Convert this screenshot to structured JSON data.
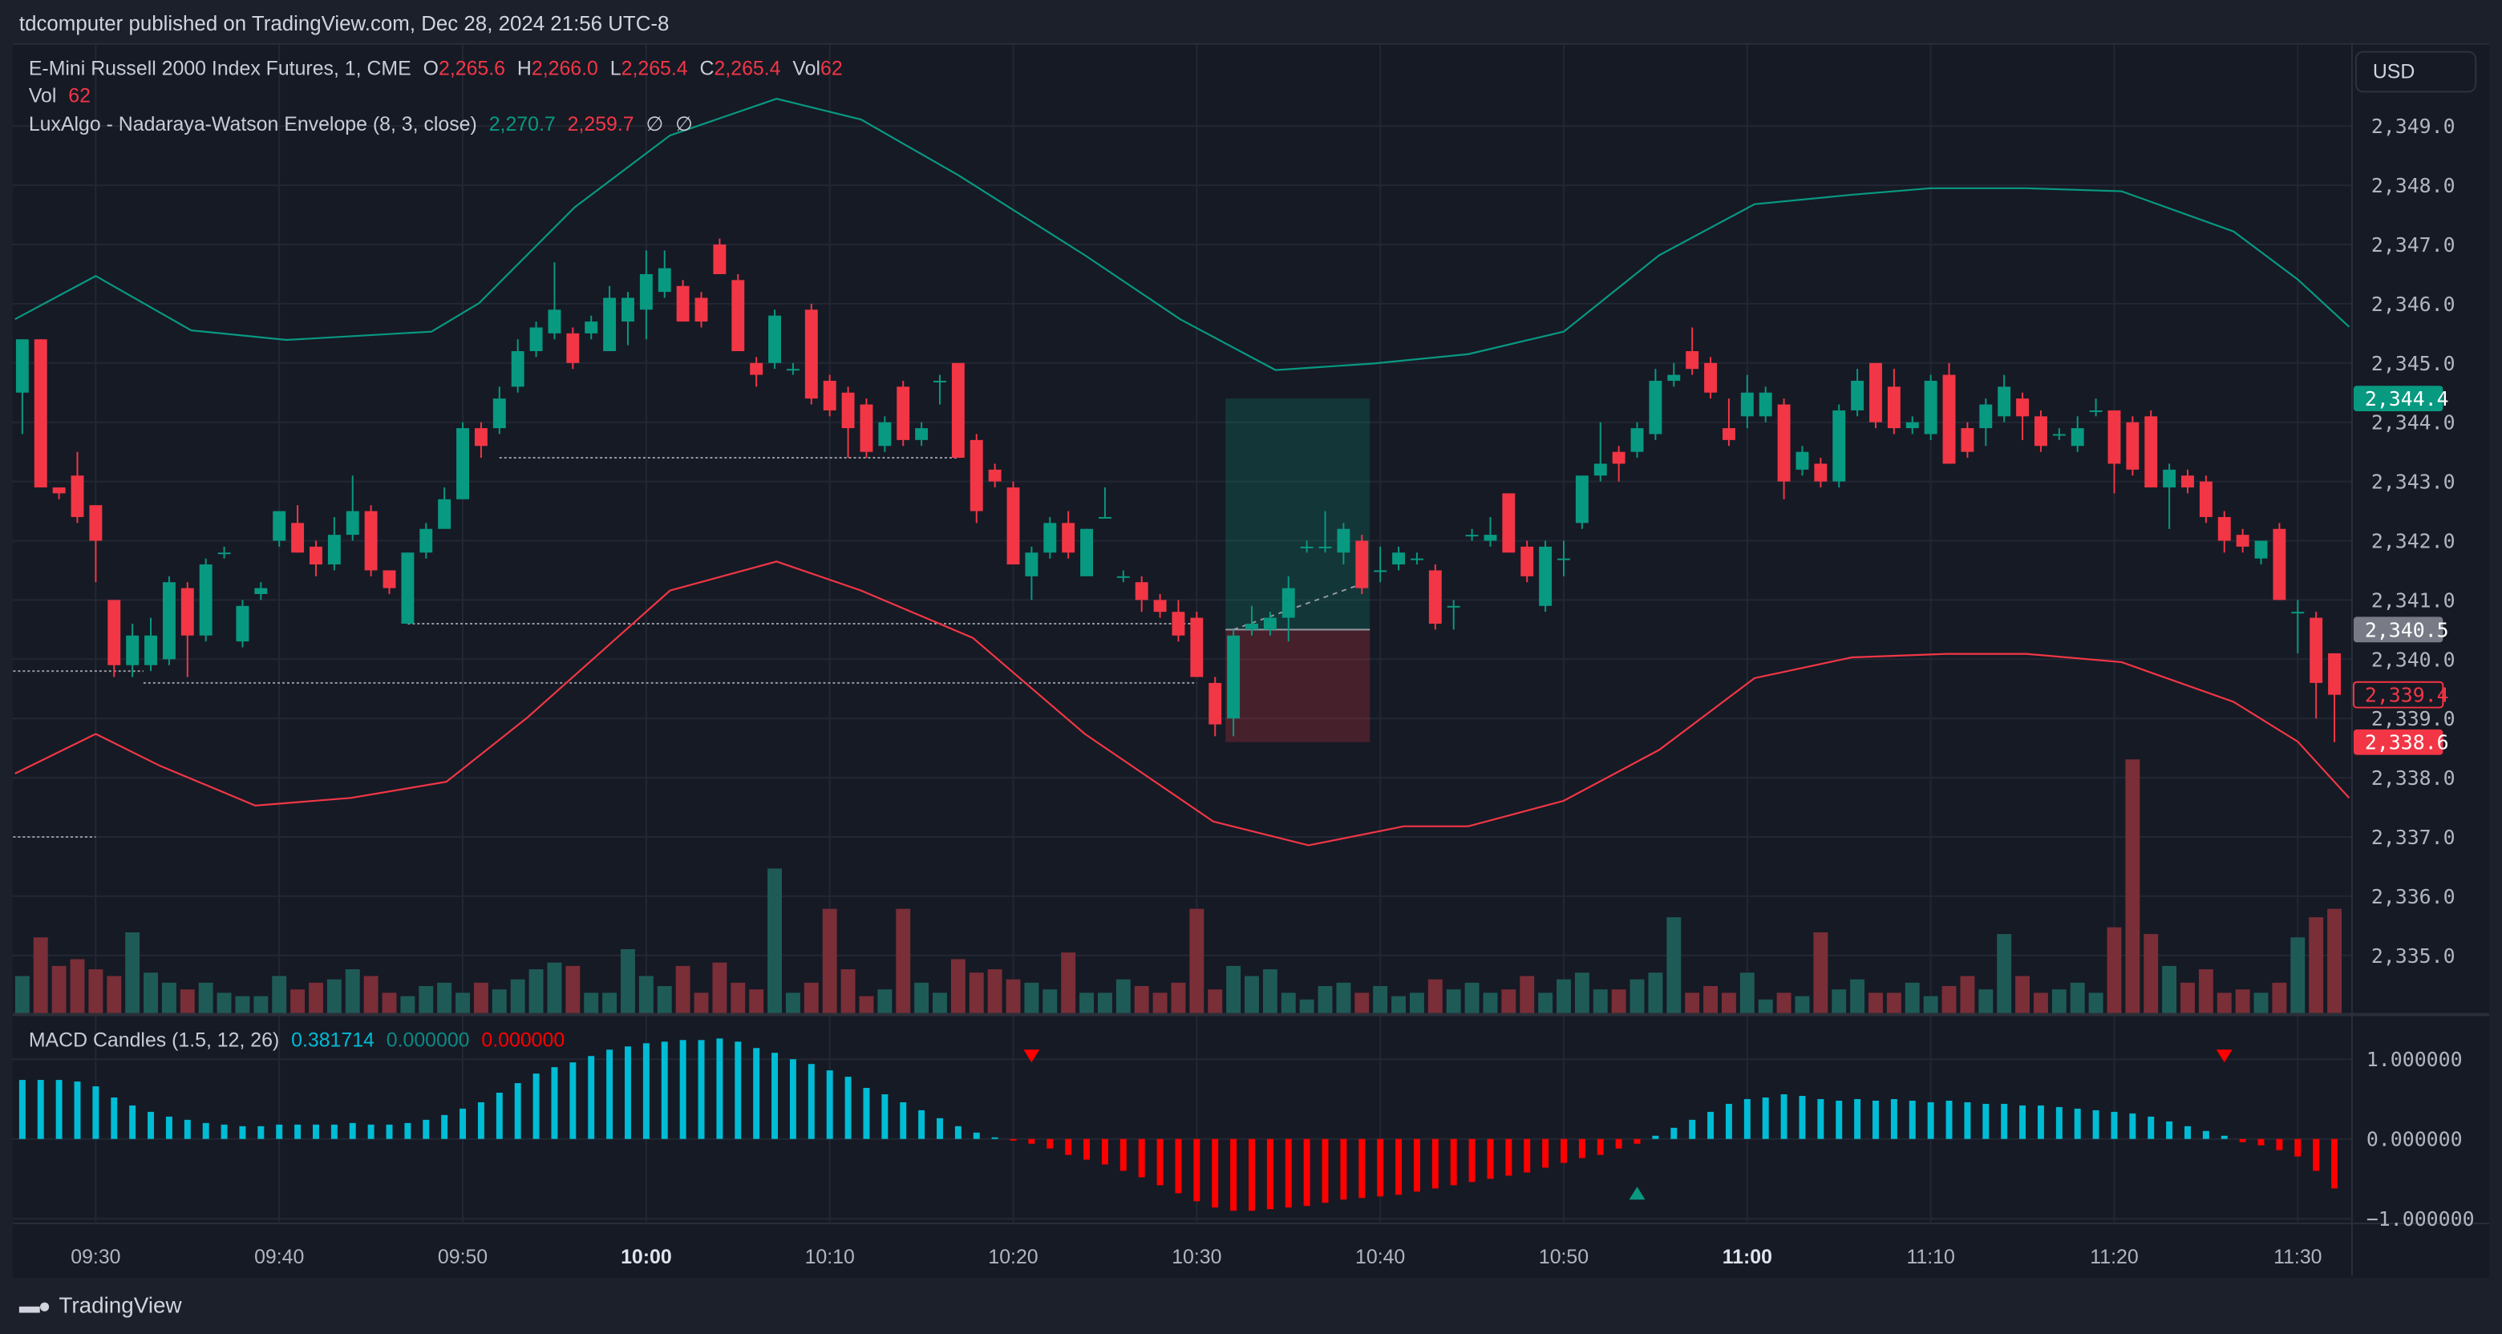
{
  "header": {
    "published": "tdcomputer published on TradingView.com, Dec 28, 2024 21:56 UTC-8"
  },
  "legend": {
    "symbol": "E-Mini Russell 2000 Index Futures, 1, CME",
    "o_label": "O",
    "o": "2,265.6",
    "h_label": "H",
    "h": "2,266.0",
    "l_label": "L",
    "l": "2,265.4",
    "c_label": "C",
    "c": "2,265.4",
    "vol_label": "Vol",
    "vol": "62",
    "vol2_label": "Vol",
    "vol2": "62",
    "envelope_name": "LuxAlgo - Nadaraya-Watson Envelope (8, 3, close)",
    "envelope_upper": "2,270.7",
    "envelope_lower": "2,259.7",
    "na1": "∅",
    "na2": "∅"
  },
  "macd_legend": {
    "name": "MACD Candles (1.5, 12, 26)",
    "v1": "0.381714",
    "v2": "0.000000",
    "v3": "0.000000"
  },
  "currency": "USD",
  "price_axis": {
    "ticks": [
      "2,349.0",
      "2,348.0",
      "2,347.0",
      "2,346.0",
      "2,345.0",
      "2,344.0",
      "2,343.0",
      "2,342.0",
      "2,341.0",
      "2,340.0",
      "2,339.0",
      "2,338.0",
      "2,337.0",
      "2,336.0",
      "2,335.0"
    ],
    "tick_values": [
      2349,
      2348,
      2347,
      2346,
      2345,
      2344,
      2343,
      2342,
      2341,
      2340,
      2339,
      2338,
      2337,
      2336,
      2335
    ],
    "badges": [
      {
        "label": "2,344.4",
        "value": 2344.4,
        "style": "fill",
        "color": "#089981"
      },
      {
        "label": "2,340.5",
        "value": 2340.5,
        "style": "fill",
        "color": "#787b86"
      },
      {
        "label": "2,339.4",
        "value": 2339.4,
        "style": "outline",
        "color": "#f23645"
      },
      {
        "label": "2,338.6",
        "value": 2338.6,
        "style": "fill",
        "color": "#f23645"
      }
    ]
  },
  "macd_axis": {
    "ticks": [
      "1.000000",
      "0.000000",
      "−1.000000"
    ],
    "tick_values": [
      1,
      0,
      -1
    ]
  },
  "time_axis": {
    "labels": [
      "09:30",
      "09:40",
      "09:50",
      "10:00",
      "10:10",
      "10:20",
      "10:30",
      "10:40",
      "10:50",
      "11:00",
      "11:10",
      "11:20",
      "11:30"
    ],
    "bold": [
      "10:00",
      "11:00"
    ]
  },
  "footer": {
    "brand": "TradingView",
    "logo_text": "TV"
  },
  "colors": {
    "up": "#089981",
    "down": "#f23645",
    "vol_up": "#1e5b57",
    "vol_down": "#7a2e37",
    "macd_pos": "#00bcd4",
    "macd_neg": "#ff0000",
    "env_upper": "#089981",
    "env_lower": "#f23645",
    "background": "#161a25"
  },
  "chart_data": {
    "type": "candlestick",
    "first_bar_time": "09:26",
    "bar_interval_minutes": 1,
    "ylim": [
      2334.2,
      2350.4
    ],
    "grid": true,
    "candles_ohlc": [
      [
        2344.5,
        2345.4,
        2343.8,
        2345.4
      ],
      [
        2345.4,
        2345.4,
        2342.9,
        2342.9
      ],
      [
        2342.9,
        2342.9,
        2342.7,
        2342.8
      ],
      [
        2343.1,
        2343.5,
        2342.3,
        2342.4
      ],
      [
        2342.6,
        2342.6,
        2341.3,
        2342.0
      ],
      [
        2341.0,
        2341.0,
        2339.7,
        2339.9
      ],
      [
        2339.9,
        2340.6,
        2339.7,
        2340.4
      ],
      [
        2339.9,
        2340.7,
        2339.8,
        2340.4
      ],
      [
        2340.0,
        2341.4,
        2339.9,
        2341.3
      ],
      [
        2341.2,
        2341.3,
        2339.7,
        2340.4
      ],
      [
        2340.4,
        2341.7,
        2340.3,
        2341.6
      ],
      [
        2341.8,
        2341.9,
        2341.7,
        2341.8
      ],
      [
        2340.3,
        2341.0,
        2340.2,
        2340.9
      ],
      [
        2341.1,
        2341.3,
        2341.0,
        2341.2
      ],
      [
        2342.0,
        2342.5,
        2341.9,
        2342.5
      ],
      [
        2342.3,
        2342.6,
        2341.8,
        2341.8
      ],
      [
        2341.9,
        2342.0,
        2341.4,
        2341.6
      ],
      [
        2341.6,
        2342.4,
        2341.5,
        2342.1
      ],
      [
        2342.1,
        2343.1,
        2342.0,
        2342.5
      ],
      [
        2342.5,
        2342.6,
        2341.4,
        2341.5
      ],
      [
        2341.5,
        2341.5,
        2341.1,
        2341.2
      ],
      [
        2340.6,
        2341.8,
        2340.6,
        2341.8
      ],
      [
        2341.8,
        2342.3,
        2341.7,
        2342.2
      ],
      [
        2342.2,
        2342.9,
        2342.2,
        2342.7
      ],
      [
        2342.7,
        2344.0,
        2342.7,
        2343.9
      ],
      [
        2343.9,
        2344.0,
        2343.4,
        2343.6
      ],
      [
        2343.9,
        2344.6,
        2343.8,
        2344.4
      ],
      [
        2344.6,
        2345.4,
        2344.5,
        2345.2
      ],
      [
        2345.2,
        2345.7,
        2345.1,
        2345.6
      ],
      [
        2345.5,
        2346.7,
        2345.4,
        2345.9
      ],
      [
        2345.5,
        2345.6,
        2344.9,
        2345.0
      ],
      [
        2345.5,
        2345.8,
        2345.4,
        2345.7
      ],
      [
        2345.2,
        2346.3,
        2345.2,
        2346.1
      ],
      [
        2345.7,
        2346.2,
        2345.3,
        2346.1
      ],
      [
        2345.9,
        2346.9,
        2345.4,
        2346.5
      ],
      [
        2346.2,
        2346.9,
        2346.1,
        2346.6
      ],
      [
        2346.3,
        2346.4,
        2345.7,
        2345.7
      ],
      [
        2346.1,
        2346.2,
        2345.6,
        2345.7
      ],
      [
        2347.0,
        2347.1,
        2346.5,
        2346.5
      ],
      [
        2346.4,
        2346.5,
        2345.2,
        2345.2
      ],
      [
        2345.0,
        2345.1,
        2344.6,
        2344.8
      ],
      [
        2345.0,
        2345.9,
        2344.9,
        2345.8
      ],
      [
        2344.9,
        2345.0,
        2344.8,
        2344.9
      ],
      [
        2345.9,
        2346.0,
        2344.3,
        2344.4
      ],
      [
        2344.7,
        2344.8,
        2344.1,
        2344.2
      ],
      [
        2344.5,
        2344.6,
        2343.4,
        2343.9
      ],
      [
        2344.3,
        2344.4,
        2343.4,
        2343.5
      ],
      [
        2343.6,
        2344.1,
        2343.5,
        2344.0
      ],
      [
        2344.6,
        2344.7,
        2343.6,
        2343.7
      ],
      [
        2343.7,
        2344.0,
        2343.6,
        2343.9
      ],
      [
        2344.7,
        2344.8,
        2344.3,
        2344.7
      ],
      [
        2345.0,
        2345.0,
        2343.4,
        2343.4
      ],
      [
        2343.7,
        2343.8,
        2342.3,
        2342.5
      ],
      [
        2343.2,
        2343.3,
        2342.9,
        2343.0
      ],
      [
        2342.9,
        2343.0,
        2341.6,
        2341.6
      ],
      [
        2341.4,
        2341.9,
        2341.0,
        2341.8
      ],
      [
        2341.8,
        2342.4,
        2341.7,
        2342.3
      ],
      [
        2342.3,
        2342.5,
        2341.7,
        2341.8
      ],
      [
        2341.4,
        2342.2,
        2341.4,
        2342.2
      ],
      [
        2342.4,
        2342.9,
        2342.4,
        2342.4
      ],
      [
        2341.4,
        2341.5,
        2341.3,
        2341.4
      ],
      [
        2341.3,
        2341.4,
        2340.8,
        2341.0
      ],
      [
        2341.0,
        2341.1,
        2340.7,
        2340.8
      ],
      [
        2340.8,
        2341.0,
        2340.3,
        2340.4
      ],
      [
        2340.7,
        2340.8,
        2339.7,
        2339.7
      ],
      [
        2339.6,
        2339.7,
        2338.7,
        2338.9
      ],
      [
        2339.0,
        2340.5,
        2338.7,
        2340.4
      ],
      [
        2340.5,
        2340.9,
        2340.4,
        2340.6
      ],
      [
        2340.5,
        2340.8,
        2340.4,
        2340.7
      ],
      [
        2340.7,
        2341.4,
        2340.3,
        2341.2
      ],
      [
        2341.9,
        2342.0,
        2341.8,
        2341.9
      ],
      [
        2341.9,
        2342.5,
        2341.8,
        2341.9
      ],
      [
        2341.8,
        2342.3,
        2341.6,
        2342.2
      ],
      [
        2342.0,
        2342.1,
        2341.1,
        2341.2
      ],
      [
        2341.5,
        2341.9,
        2341.3,
        2341.5
      ],
      [
        2341.6,
        2341.9,
        2341.5,
        2341.8
      ],
      [
        2341.7,
        2341.8,
        2341.6,
        2341.7
      ],
      [
        2341.5,
        2341.6,
        2340.5,
        2340.6
      ],
      [
        2340.9,
        2341.0,
        2340.5,
        2340.9
      ],
      [
        2342.1,
        2342.2,
        2342.0,
        2342.1
      ],
      [
        2342.0,
        2342.4,
        2341.9,
        2342.1
      ],
      [
        2342.8,
        2342.8,
        2341.8,
        2341.8
      ],
      [
        2341.9,
        2342.0,
        2341.3,
        2341.4
      ],
      [
        2340.9,
        2342.0,
        2340.8,
        2341.9
      ],
      [
        2341.7,
        2342.0,
        2341.4,
        2341.7
      ],
      [
        2342.3,
        2343.1,
        2342.2,
        2343.1
      ],
      [
        2343.1,
        2344.0,
        2343.0,
        2343.3
      ],
      [
        2343.5,
        2343.6,
        2343.0,
        2343.3
      ],
      [
        2343.5,
        2344.0,
        2343.4,
        2343.9
      ],
      [
        2343.8,
        2344.9,
        2343.7,
        2344.7
      ],
      [
        2344.7,
        2345.0,
        2344.6,
        2344.8
      ],
      [
        2345.2,
        2345.6,
        2344.8,
        2344.9
      ],
      [
        2345.0,
        2345.1,
        2344.4,
        2344.5
      ],
      [
        2343.9,
        2344.4,
        2343.6,
        2343.7
      ],
      [
        2344.1,
        2344.8,
        2343.9,
        2344.5
      ],
      [
        2344.1,
        2344.6,
        2344.0,
        2344.5
      ],
      [
        2344.3,
        2344.4,
        2342.7,
        2343.0
      ],
      [
        2343.2,
        2343.6,
        2343.1,
        2343.5
      ],
      [
        2343.3,
        2343.4,
        2342.9,
        2343.0
      ],
      [
        2343.0,
        2344.3,
        2342.9,
        2344.2
      ],
      [
        2344.2,
        2344.9,
        2344.1,
        2344.7
      ],
      [
        2345.0,
        2345.0,
        2343.9,
        2344.0
      ],
      [
        2344.6,
        2344.9,
        2343.8,
        2343.9
      ],
      [
        2343.9,
        2344.1,
        2343.8,
        2344.0
      ],
      [
        2343.8,
        2344.8,
        2343.7,
        2344.7
      ],
      [
        2344.8,
        2345.0,
        2343.3,
        2343.3
      ],
      [
        2343.9,
        2344.0,
        2343.4,
        2343.5
      ],
      [
        2343.9,
        2344.4,
        2343.6,
        2344.3
      ],
      [
        2344.1,
        2344.8,
        2344.0,
        2344.6
      ],
      [
        2344.4,
        2344.5,
        2343.7,
        2344.1
      ],
      [
        2344.1,
        2344.2,
        2343.5,
        2343.6
      ],
      [
        2343.8,
        2343.9,
        2343.7,
        2343.8
      ],
      [
        2343.6,
        2344.1,
        2343.5,
        2343.9
      ],
      [
        2344.2,
        2344.4,
        2344.1,
        2344.2
      ],
      [
        2344.2,
        2344.2,
        2342.8,
        2343.3
      ],
      [
        2344.0,
        2344.1,
        2343.1,
        2343.2
      ],
      [
        2344.1,
        2344.2,
        2342.9,
        2342.9
      ],
      [
        2342.9,
        2343.3,
        2342.2,
        2343.2
      ],
      [
        2343.1,
        2343.2,
        2342.8,
        2342.9
      ],
      [
        2343.0,
        2343.1,
        2342.3,
        2342.4
      ],
      [
        2342.4,
        2342.5,
        2341.8,
        2342.0
      ],
      [
        2342.1,
        2342.2,
        2341.8,
        2341.9
      ],
      [
        2341.7,
        2342.0,
        2341.6,
        2342.0
      ],
      [
        2342.2,
        2342.3,
        2341.0,
        2341.0
      ],
      [
        2340.8,
        2341.0,
        2340.1,
        2340.8
      ],
      [
        2340.7,
        2340.8,
        2339.0,
        2339.6
      ],
      [
        2340.1,
        2340.1,
        2338.6,
        2339.4
      ]
    ],
    "volume": [
      22,
      45,
      28,
      32,
      26,
      22,
      48,
      24,
      18,
      14,
      18,
      12,
      10,
      10,
      22,
      14,
      18,
      20,
      26,
      22,
      12,
      10,
      16,
      18,
      12,
      18,
      14,
      20,
      26,
      30,
      28,
      12,
      12,
      38,
      22,
      16,
      28,
      12,
      30,
      18,
      14,
      86,
      12,
      18,
      62,
      26,
      10,
      14,
      62,
      18,
      12,
      32,
      24,
      26,
      20,
      18,
      14,
      36,
      12,
      12,
      20,
      16,
      12,
      18,
      62,
      14,
      28,
      22,
      26,
      12,
      8,
      16,
      18,
      12,
      16,
      10,
      12,
      20,
      14,
      18,
      12,
      14,
      22,
      12,
      20,
      24,
      14,
      14,
      20,
      24,
      57,
      12,
      16,
      12,
      24,
      8,
      12,
      10,
      48,
      14,
      20,
      12,
      12,
      18,
      10,
      16,
      22,
      14,
      47,
      22,
      12,
      14,
      18,
      12,
      51,
      151,
      47,
      28,
      18,
      26,
      12,
      14,
      12,
      18,
      45,
      57,
      62
    ],
    "macd": [
      0.74,
      0.74,
      0.74,
      0.72,
      0.66,
      0.52,
      0.42,
      0.34,
      0.28,
      0.24,
      0.2,
      0.18,
      0.16,
      0.16,
      0.18,
      0.18,
      0.18,
      0.18,
      0.2,
      0.18,
      0.18,
      0.2,
      0.24,
      0.3,
      0.38,
      0.46,
      0.58,
      0.7,
      0.82,
      0.9,
      0.96,
      1.04,
      1.12,
      1.16,
      1.2,
      1.22,
      1.24,
      1.24,
      1.26,
      1.22,
      1.14,
      1.08,
      1.0,
      0.94,
      0.86,
      0.78,
      0.64,
      0.56,
      0.46,
      0.36,
      0.26,
      0.16,
      0.08,
      0.02,
      -0.02,
      -0.06,
      -0.12,
      -0.2,
      -0.26,
      -0.32,
      -0.4,
      -0.48,
      -0.58,
      -0.68,
      -0.78,
      -0.86,
      -0.9,
      -0.9,
      -0.88,
      -0.86,
      -0.84,
      -0.8,
      -0.76,
      -0.74,
      -0.72,
      -0.7,
      -0.66,
      -0.62,
      -0.58,
      -0.54,
      -0.5,
      -0.46,
      -0.42,
      -0.36,
      -0.3,
      -0.24,
      -0.2,
      -0.12,
      -0.06,
      0.04,
      0.14,
      0.24,
      0.34,
      0.44,
      0.5,
      0.52,
      0.56,
      0.54,
      0.5,
      0.48,
      0.5,
      0.48,
      0.5,
      0.48,
      0.46,
      0.48,
      0.46,
      0.44,
      0.44,
      0.42,
      0.42,
      0.4,
      0.38,
      0.36,
      0.34,
      0.32,
      0.28,
      0.22,
      0.16,
      0.1,
      0.04,
      -0.04,
      -0.08,
      -0.14,
      -0.22,
      -0.4,
      -0.62
    ],
    "macd_signals": [
      {
        "bar": 55,
        "type": "sell"
      },
      {
        "bar": 88,
        "type": "buy"
      },
      {
        "bar": 120,
        "type": "sell"
      }
    ],
    "envelope_upper": [
      [
        -0.4,
        2345.74
      ],
      [
        4,
        2346.47
      ],
      [
        9.2,
        2345.55
      ],
      [
        14.4,
        2345.39
      ],
      [
        22.3,
        2345.53
      ],
      [
        24.9,
        2346.01
      ],
      [
        30.1,
        2347.63
      ],
      [
        35.3,
        2348.84
      ],
      [
        41.1,
        2349.46
      ],
      [
        45.7,
        2349.11
      ],
      [
        51,
        2348.17
      ],
      [
        57.9,
        2346.82
      ],
      [
        63.1,
        2345.74
      ],
      [
        68.3,
        2344.88
      ],
      [
        73.6,
        2344.99
      ],
      [
        78.8,
        2345.15
      ],
      [
        84,
        2345.53
      ],
      [
        89.2,
        2346.82
      ],
      [
        94.4,
        2347.68
      ],
      [
        99.7,
        2347.84
      ],
      [
        104,
        2347.95
      ],
      [
        109.2,
        2347.95
      ],
      [
        114.4,
        2347.9
      ],
      [
        120.5,
        2347.22
      ],
      [
        124,
        2346.41
      ],
      [
        126.8,
        2345.61
      ]
    ],
    "envelope_lower": [
      [
        -0.4,
        2338.07
      ],
      [
        4,
        2338.74
      ],
      [
        7.5,
        2338.2
      ],
      [
        12.7,
        2337.53
      ],
      [
        17.9,
        2337.66
      ],
      [
        23.1,
        2337.93
      ],
      [
        27.5,
        2339.01
      ],
      [
        35.3,
        2341.16
      ],
      [
        41.1,
        2341.65
      ],
      [
        45.7,
        2341.16
      ],
      [
        51.8,
        2340.36
      ],
      [
        57.9,
        2338.74
      ],
      [
        64.9,
        2337.26
      ],
      [
        70.1,
        2336.86
      ],
      [
        75.3,
        2337.18
      ],
      [
        78.8,
        2337.18
      ],
      [
        84,
        2337.61
      ],
      [
        89.2,
        2338.47
      ],
      [
        94.4,
        2339.68
      ],
      [
        99.7,
        2340.03
      ],
      [
        104.9,
        2340.09
      ],
      [
        109.2,
        2340.09
      ],
      [
        114.4,
        2339.95
      ],
      [
        120.5,
        2339.28
      ],
      [
        124,
        2338.61
      ],
      [
        126.8,
        2337.66
      ]
    ],
    "position": {
      "entry": 2340.5,
      "target": 2344.4,
      "stop": 2338.6,
      "start_bar": 66,
      "end_bar": 73
    },
    "levels": [
      {
        "price": 2343.4,
        "from_bar": 26,
        "to_bar": 51
      },
      {
        "price": 2340.6,
        "from_bar": 21,
        "to_bar": 64
      },
      {
        "price": 2339.6,
        "from_bar": 6.6,
        "to_bar": 64
      },
      {
        "price": 2339.8,
        "from_bar": -0.5,
        "to_bar": 6.6
      },
      {
        "price": 2337.0,
        "from_bar": -0.5,
        "to_bar": 4
      }
    ]
  }
}
